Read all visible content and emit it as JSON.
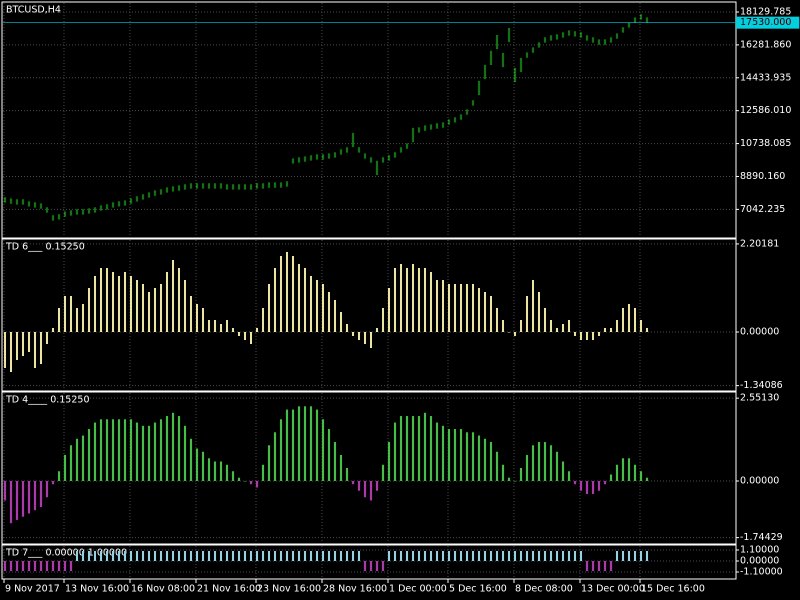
{
  "chart_data": [
    {
      "type": "range",
      "title": "BTCUSD,H4",
      "color": "#00ff00",
      "high": [
        7720,
        7660,
        7610,
        7610,
        7500,
        7440,
        7380,
        7160,
        6710,
        6770,
        6930,
        6990,
        7050,
        7050,
        7100,
        7160,
        7270,
        7330,
        7440,
        7500,
        7550,
        7660,
        7780,
        7890,
        8000,
        8110,
        8170,
        8280,
        8340,
        8390,
        8450,
        8510,
        8510,
        8510,
        8510,
        8510,
        8510,
        8450,
        8450,
        8450,
        8450,
        8450,
        8510,
        8510,
        8560,
        8560,
        8560,
        8620,
        9910,
        9970,
        10020,
        10080,
        10140,
        10140,
        10190,
        10250,
        10420,
        10530,
        11340,
        10530,
        10190,
        9970,
        9770,
        9970,
        10080,
        10250,
        10530,
        10750,
        11620,
        11650,
        11760,
        11820,
        11880,
        11930,
        12100,
        12220,
        12380,
        12660,
        13170,
        14260,
        15160,
        15950,
        16840,
        15830,
        17240,
        14990,
        15550,
        15860,
        16140,
        16430,
        16710,
        16820,
        16880,
        16990,
        17100,
        17050,
        16990,
        16820,
        16710,
        16590,
        16590,
        16710,
        16930,
        17270,
        17550,
        17830,
        18000,
        17830
      ],
      "low": [
        7420,
        7360,
        7310,
        7310,
        7200,
        7140,
        7080,
        6860,
        6410,
        6470,
        6630,
        6690,
        6750,
        6750,
        6800,
        6860,
        6970,
        7030,
        7140,
        7200,
        7250,
        7360,
        7480,
        7590,
        7700,
        7810,
        7870,
        7980,
        8040,
        8090,
        8150,
        8210,
        8210,
        8210,
        8210,
        8210,
        8210,
        8150,
        8150,
        8150,
        8150,
        8150,
        8210,
        8210,
        8260,
        8260,
        8260,
        8320,
        9610,
        9670,
        9720,
        9780,
        9840,
        9840,
        9890,
        9950,
        10120,
        10230,
        10540,
        10230,
        9890,
        9670,
        8970,
        9670,
        9780,
        9950,
        10230,
        10450,
        10820,
        11350,
        11460,
        11520,
        11580,
        11630,
        11800,
        11920,
        12080,
        12360,
        12870,
        13460,
        14360,
        15150,
        16040,
        15030,
        16440,
        14190,
        14750,
        15560,
        15840,
        16130,
        16410,
        16520,
        16580,
        16690,
        16800,
        16750,
        16690,
        16520,
        16410,
        16290,
        16290,
        16410,
        16630,
        16970,
        17250,
        17530,
        17700,
        17530
      ],
      "current_price": {
        "value": 17530,
        "label": "17530.000"
      },
      "current_color": "#00d0e0",
      "ylim": [
        5490,
        18635
      ],
      "yticks": [
        18129.785,
        {
          "value": 16281.86,
          "label": "16281.860"
        },
        14433.935,
        {
          "value": 12586.01,
          "label": "12586.010"
        },
        10738.085,
        {
          "value": 8890.16,
          "label": "8890.160"
        },
        7042.235
      ],
      "grid": true
    },
    {
      "type": "bar",
      "title": "TD 6___  0.15250",
      "color": "#f0e68c",
      "values": [
        -0.9,
        -1.0,
        -0.7,
        -0.6,
        -0.5,
        -0.9,
        -0.8,
        -0.3,
        0.1,
        0.6,
        0.9,
        0.9,
        0.6,
        0.7,
        1.1,
        1.4,
        1.6,
        1.6,
        1.5,
        1.4,
        1.5,
        1.4,
        1.3,
        1.2,
        1.0,
        1.1,
        1.2,
        1.5,
        1.8,
        1.6,
        1.3,
        0.9,
        0.7,
        0.6,
        0.3,
        0.3,
        0.2,
        0.3,
        0.1,
        -0.1,
        -0.2,
        -0.3,
        0.1,
        0.6,
        1.2,
        1.6,
        1.9,
        2.0,
        1.9,
        1.7,
        1.6,
        1.4,
        1.3,
        1.2,
        1.0,
        0.8,
        0.5,
        0.2,
        -0.1,
        -0.2,
        -0.3,
        -0.4,
        0.1,
        0.6,
        1.1,
        1.6,
        1.7,
        1.6,
        1.7,
        1.6,
        1.6,
        1.5,
        1.3,
        1.3,
        1.2,
        1.2,
        1.2,
        1.2,
        1.2,
        1.1,
        1.0,
        0.9,
        0.6,
        0.3,
        0.0,
        -0.1,
        0.3,
        0.9,
        1.3,
        1.0,
        0.6,
        0.3,
        0.1,
        0.2,
        0.3,
        -0.1,
        -0.2,
        -0.2,
        -0.2,
        -0.1,
        0.1,
        0.1,
        0.3,
        0.6,
        0.7,
        0.6,
        0.3,
        0.1
      ],
      "ylim": [
        -1.45,
        2.3
      ],
      "yticks": [
        2.20181,
        {
          "value": 0,
          "label": "0.00000"
        },
        -1.34086
      ],
      "grid": true
    },
    {
      "type": "bar",
      "title": "TD 4____  0.15250",
      "color": "#32cd32",
      "negative_color": "#c02cc0",
      "values": [
        -0.6,
        -1.3,
        -1.2,
        -1.1,
        -1.0,
        -0.9,
        -0.8,
        -0.5,
        -0.1,
        0.3,
        0.8,
        1.1,
        1.3,
        1.4,
        1.6,
        1.8,
        1.9,
        1.9,
        1.9,
        1.9,
        1.9,
        1.9,
        1.8,
        1.7,
        1.7,
        1.8,
        1.9,
        2.0,
        2.1,
        2.0,
        1.7,
        1.3,
        1.0,
        0.9,
        0.7,
        0.6,
        0.6,
        0.5,
        0.3,
        0.1,
        0.0,
        -0.1,
        -0.2,
        0.5,
        1.1,
        1.5,
        1.9,
        2.2,
        2.2,
        2.3,
        2.3,
        2.3,
        2.2,
        1.9,
        1.6,
        1.2,
        0.8,
        0.4,
        -0.1,
        -0.3,
        -0.5,
        -0.6,
        -0.3,
        0.5,
        1.2,
        1.8,
        2.0,
        2.0,
        2.0,
        2.0,
        2.1,
        2.0,
        1.8,
        1.7,
        1.6,
        1.6,
        1.6,
        1.5,
        1.5,
        1.4,
        1.3,
        1.2,
        0.9,
        0.5,
        0.1,
        0.0,
        0.4,
        0.8,
        1.1,
        1.2,
        1.2,
        1.1,
        0.9,
        0.6,
        0.3,
        -0.1,
        -0.3,
        -0.4,
        -0.4,
        -0.3,
        -0.1,
        0.2,
        0.5,
        0.7,
        0.7,
        0.5,
        0.3,
        0.1
      ],
      "ylim": [
        -1.91,
        2.71
      ],
      "yticks": [
        {
          "value": 2.5513,
          "label": "2.55130"
        },
        {
          "value": 0,
          "label": "0.00000"
        },
        -1.74429
      ],
      "grid": true
    },
    {
      "type": "bar",
      "title": "TD 7___  0.00000  1.00000",
      "color": "#87d8e8",
      "negative_color": "#c02cc0",
      "values": [
        -1,
        -1,
        -1,
        -1,
        -1,
        -1,
        -1,
        -1,
        -1,
        -1,
        -1,
        -1,
        1,
        1,
        1,
        1,
        1,
        1,
        1,
        1,
        1,
        1,
        1,
        1,
        1,
        1,
        1,
        1,
        1,
        1,
        1,
        1,
        1,
        1,
        1,
        1,
        1,
        1,
        1,
        1,
        1,
        1,
        1,
        1,
        1,
        1,
        1,
        1,
        1,
        1,
        1,
        1,
        1,
        1,
        1,
        1,
        1,
        1,
        1,
        1,
        -1,
        -1,
        -1,
        -1,
        1,
        1,
        1,
        1,
        1,
        1,
        1,
        1,
        1,
        1,
        1,
        1,
        1,
        1,
        1,
        1,
        1,
        1,
        1,
        1,
        1,
        1,
        1,
        1,
        1,
        1,
        1,
        1,
        1,
        1,
        1,
        1,
        1,
        -1,
        -1,
        -1,
        -1,
        -1,
        1,
        1,
        1,
        1,
        1,
        1
      ],
      "categories": [
        "9 Nov 2017",
        null,
        null,
        null,
        null,
        null,
        null,
        null,
        null,
        null,
        "13 Nov 16:00",
        null,
        null,
        null,
        null,
        null,
        null,
        null,
        null,
        null,
        null,
        "16 Nov 08:00",
        null,
        null,
        null,
        null,
        null,
        null,
        null,
        null,
        null,
        null,
        "21 Nov 16:00",
        null,
        null,
        null,
        null,
        null,
        null,
        null,
        null,
        null,
        "23 Nov 16:00",
        null,
        null,
        null,
        null,
        null,
        null,
        null,
        null,
        null,
        null,
        "28 Nov 16:00",
        null,
        null,
        null,
        null,
        null,
        null,
        null,
        null,
        null,
        null,
        "1 Dec 00:00",
        null,
        null,
        null,
        null,
        null,
        null,
        null,
        null,
        null,
        "5 Dec 16:00",
        null,
        null,
        null,
        null,
        null,
        null,
        null,
        null,
        null,
        null,
        "8 Dec 08:00",
        null,
        null,
        null,
        null,
        null,
        null,
        null,
        null,
        null,
        null,
        "13 Dec 00:00",
        null,
        null,
        null,
        null,
        null,
        null,
        null,
        null,
        null,
        "15 Dec 16:00",
        null
      ],
      "ylim": [
        -1.7,
        1.5
      ],
      "yticks": [
        {
          "value": 1.1,
          "label": "1.10000"
        },
        {
          "value": 0,
          "label": "0.00000"
        },
        {
          "value": -1.1,
          "label": "-1.10000"
        }
      ],
      "grid": true
    }
  ]
}
